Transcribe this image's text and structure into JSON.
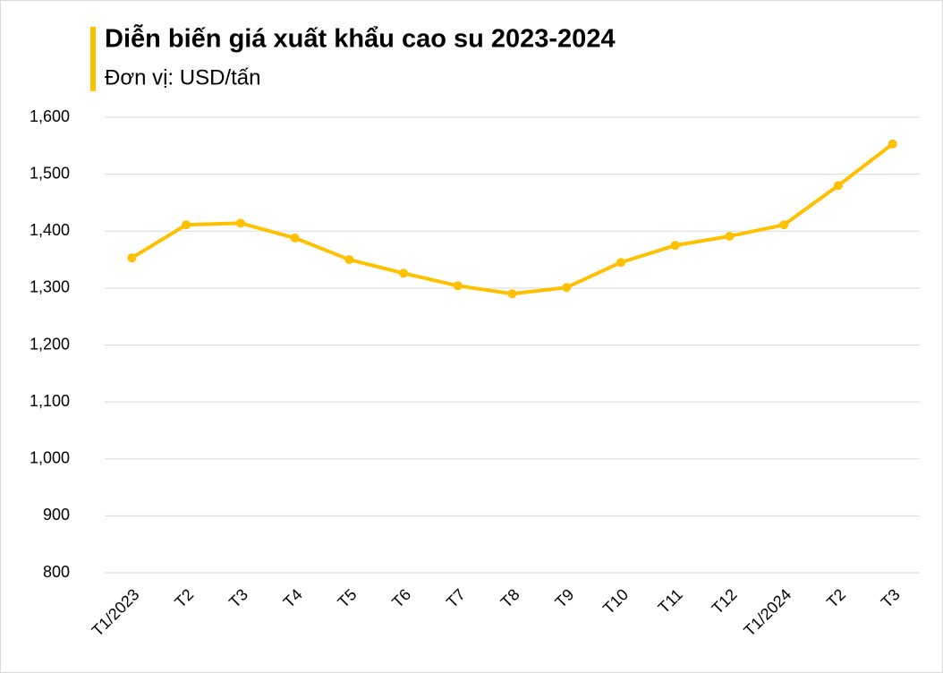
{
  "chart_data": {
    "type": "line",
    "title": "Diễn biến giá xuất khẩu cao su 2023-2024",
    "subtitle": "Đơn vị: USD/tấn",
    "categories": [
      "T1/2023",
      "T2",
      "T3",
      "T4",
      "T5",
      "T6",
      "T7",
      "T8",
      "T9",
      "T10",
      "T11",
      "T12",
      "T1/2024",
      "T2",
      "T3"
    ],
    "values": [
      1353,
      1411,
      1414,
      1388,
      1350,
      1326,
      1304,
      1290,
      1301,
      1345,
      1375,
      1391,
      1411,
      1480,
      1553
    ],
    "color": "#FFC000",
    "ylim": [
      800,
      1600
    ],
    "yticks": [
      800,
      900,
      {
        "value": 1000,
        "label": "1,000"
      },
      {
        "value": 1100,
        "label": "1,100"
      },
      {
        "value": 1200,
        "label": "1,200"
      },
      {
        "value": 1300,
        "label": "1,300"
      },
      {
        "value": 1400,
        "label": "1,400"
      },
      {
        "value": 1500,
        "label": "1,500"
      },
      {
        "value": 1600,
        "label": "1,600"
      }
    ],
    "grid": true
  }
}
